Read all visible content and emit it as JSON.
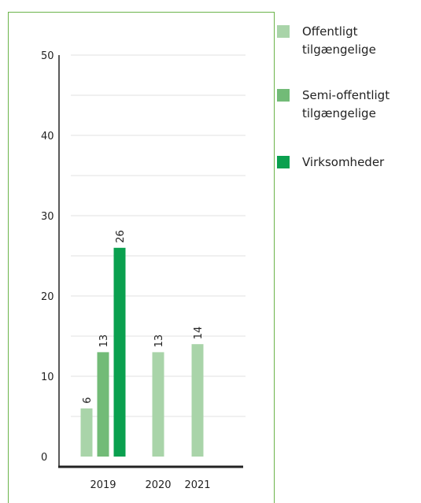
{
  "chart_data": {
    "type": "bar",
    "categories": [
      "2019",
      "2020",
      "2021"
    ],
    "series": [
      {
        "name": "Offentligt tilgængelige",
        "color": "#a9d4a9",
        "values": [
          6,
          13,
          14
        ]
      },
      {
        "name": "Semi-offentligt tilgængelige",
        "color": "#72bb77",
        "values": [
          13,
          null,
          null
        ]
      },
      {
        "name": "Virksomheder",
        "color": "#0aa04f",
        "values": [
          26,
          null,
          null
        ]
      }
    ],
    "ylim": [
      0,
      50
    ],
    "yticks": [
      0,
      10,
      20,
      30,
      40,
      50
    ],
    "minor_yticks": [
      5,
      15,
      25,
      35,
      45
    ],
    "grid": true,
    "legend": "right"
  }
}
